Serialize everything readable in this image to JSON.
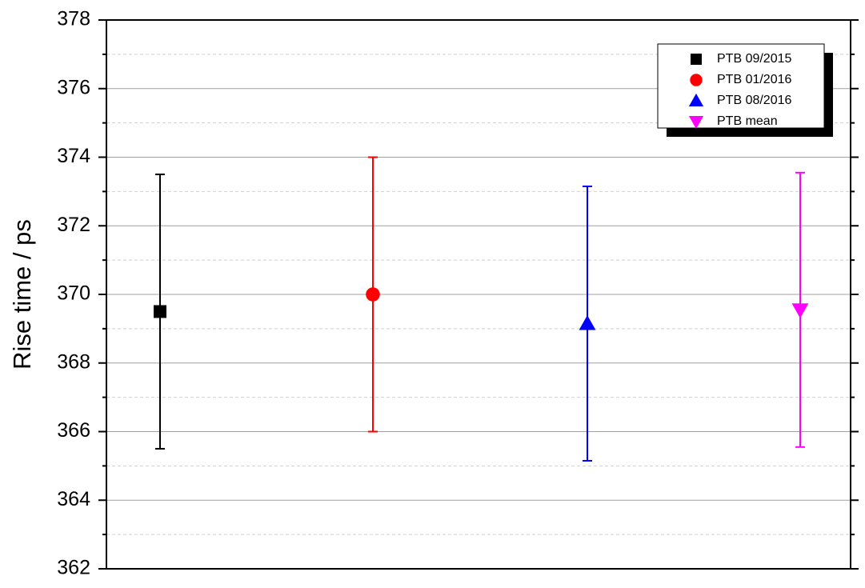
{
  "chart_data": {
    "type": "scatter",
    "y_label": "Rise time / ps",
    "ylim": [
      362,
      378
    ],
    "yticks": [
      362,
      364,
      366,
      368,
      370,
      372,
      374,
      376,
      378
    ],
    "yminorticks": [
      363,
      365,
      367,
      369,
      371,
      373,
      375,
      377
    ],
    "grid": true,
    "legend_position": "upper right",
    "series": [
      {
        "name": "PTB 09/2015",
        "color": "#000000",
        "marker": "square",
        "values": [
          369.5
        ],
        "errors": [
          4
        ]
      },
      {
        "name": "PTB 01/2016",
        "color": "#ff0000",
        "marker": "circle",
        "values": [
          370
        ],
        "errors": [
          4
        ]
      },
      {
        "name": "PTB 08/2016",
        "color": "#0000ff",
        "marker": "triangle-up",
        "values": [
          369.15
        ],
        "errors": [
          4
        ]
      },
      {
        "name": "PTB mean",
        "color": "#ff00ff",
        "marker": "triangle-down",
        "values": [
          369.55
        ],
        "errors": [
          4
        ]
      }
    ]
  }
}
